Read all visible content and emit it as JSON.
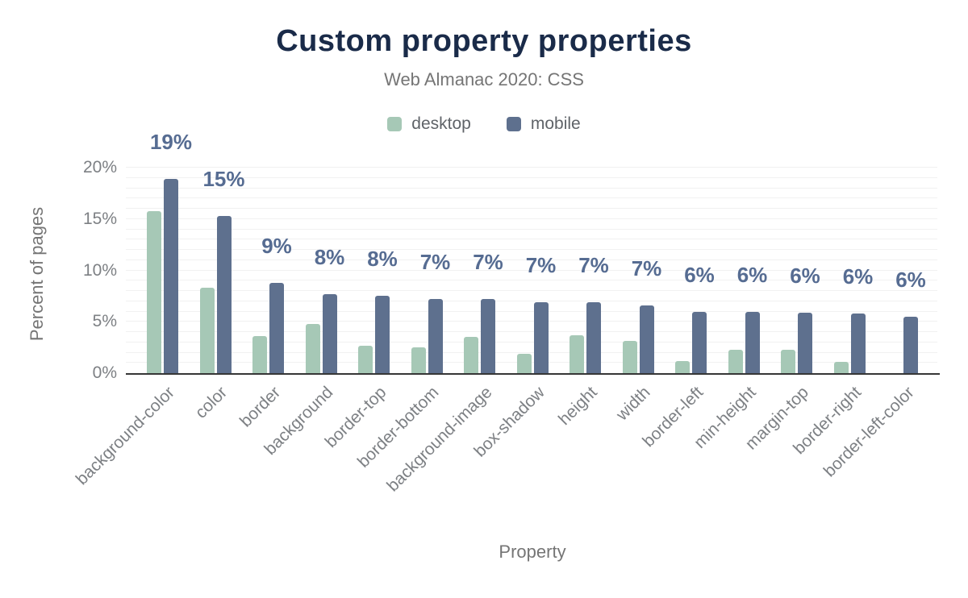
{
  "page": {
    "background": "#ffffff"
  },
  "chart_data": {
    "type": "bar",
    "title": "Custom property properties",
    "subtitle": "Web Almanac 2020: CSS",
    "xlabel": "Property",
    "ylabel": "Percent of pages",
    "categories": [
      "background-color",
      "color",
      "border",
      "background",
      "border-top",
      "border-bottom",
      "background-image",
      "box-shadow",
      "height",
      "width",
      "border-left",
      "min-height",
      "margin-top",
      "border-right",
      "border-left-color"
    ],
    "series": [
      {
        "name": "desktop",
        "color": "#a6c8b6",
        "values": [
          15.8,
          8.3,
          3.6,
          4.8,
          2.7,
          2.5,
          3.5,
          1.9,
          3.7,
          3.1,
          1.2,
          2.3,
          2.3,
          1.1,
          0
        ]
      },
      {
        "name": "mobile",
        "color": "#5e708e",
        "values": [
          18.9,
          15.3,
          8.8,
          7.7,
          7.5,
          7.2,
          7.2,
          6.9,
          6.9,
          6.6,
          6.0,
          6.0,
          5.9,
          5.8,
          5.5
        ]
      }
    ],
    "bar_labels": [
      "19%",
      "15%",
      "9%",
      "8%",
      "8%",
      "7%",
      "7%",
      "7%",
      "7%",
      "7%",
      "6%",
      "6%",
      "6%",
      "6%",
      "6%"
    ],
    "bar_labels_on_series": "mobile",
    "y_tick_values": [
      0,
      5,
      10,
      15,
      20
    ],
    "y_tick_labels": [
      "0%",
      "5%",
      "10%",
      "15%",
      "20%"
    ],
    "ylim": [
      0,
      20
    ],
    "grid": "horizontal minor gridlines every 1%",
    "legend_position": "top-center",
    "colors": {
      "title": "#1a2b49",
      "subtitle": "#757575",
      "axis_title": "#757575",
      "tick": "#7d8084",
      "bar_label": "#566c92",
      "legend_text": "#5f6368",
      "gridline": "#f1f1f1",
      "axis_line": "#363636"
    }
  }
}
